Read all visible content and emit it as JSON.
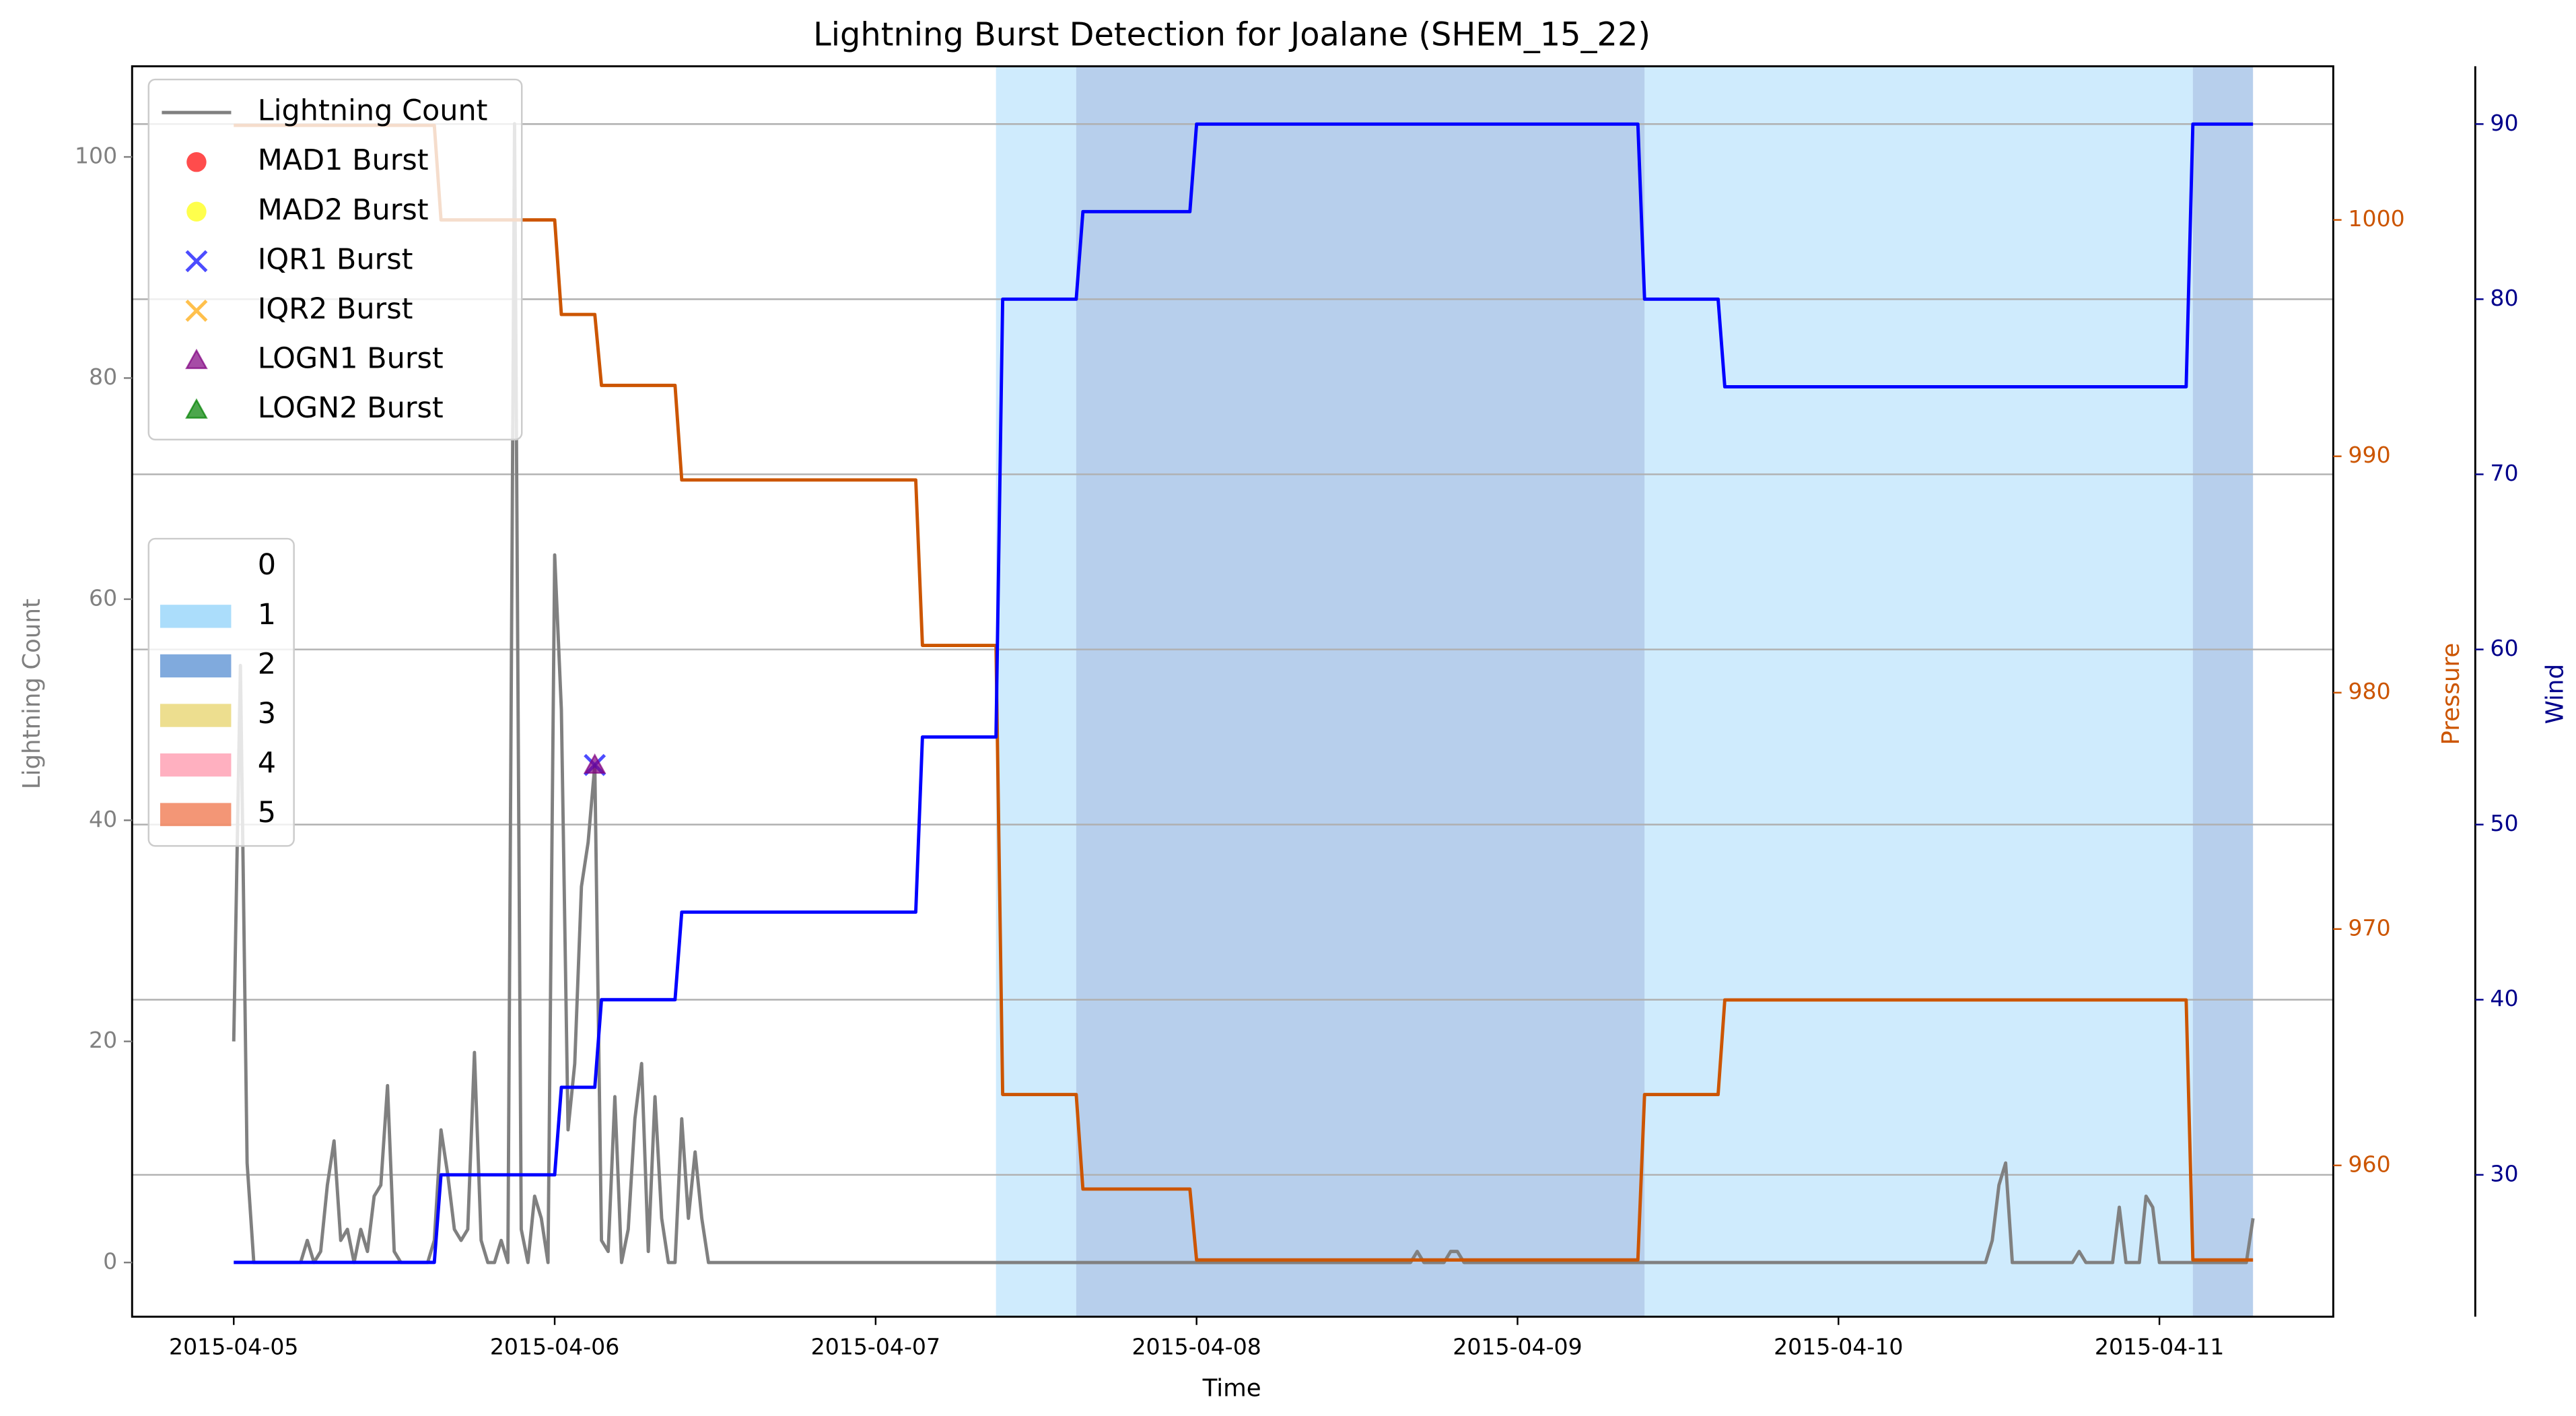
{
  "chart_data": {
    "type": "line",
    "title": "Lightning Burst Detection for Joalane (SHEM_15_22)",
    "x_label": "Time",
    "y_label": "Lightning Count",
    "y2_label": "Pressure",
    "y3_label": "Wind",
    "xlim": [
      "2015-04-04 16:24",
      "2015-04-11 13:00"
    ],
    "xticks": [
      "2015-04-05",
      "2015-04-06",
      "2015-04-07",
      "2015-04-08",
      "2015-04-09",
      "2015-04-10",
      "2015-04-11"
    ],
    "ylim": [
      -4.9,
      108.2
    ],
    "yticks": [
      0,
      20,
      40,
      60,
      80,
      100
    ],
    "y2lim": [
      953.6,
      1006.5
    ],
    "y2ticks": [
      960,
      970,
      980,
      990,
      1000
    ],
    "y3lim": [
      21.9,
      93.3
    ],
    "y3ticks": [
      30,
      40,
      50,
      60,
      70,
      80,
      90
    ],
    "grid": true,
    "legend": "upper left",
    "series": [
      {
        "name": "Lightning Count",
        "color": "#808080",
        "axis": "y",
        "x": [
          "2015-04-05 00:00",
          "2015-04-05 00:30",
          "2015-04-05 01:00",
          "2015-04-05 01:30",
          "2015-04-05 05:00",
          "2015-04-05 05:30",
          "2015-04-05 06:00",
          "2015-04-05 06:30",
          "2015-04-05 07:00",
          "2015-04-05 07:30",
          "2015-04-05 08:00",
          "2015-04-05 08:30",
          "2015-04-05 09:00",
          "2015-04-05 09:30",
          "2015-04-05 10:00",
          "2015-04-05 10:30",
          "2015-04-05 11:00",
          "2015-04-05 11:30",
          "2015-04-05 12:00",
          "2015-04-05 12:30",
          "2015-04-05 14:30",
          "2015-04-05 15:00",
          "2015-04-05 15:30",
          "2015-04-05 16:00",
          "2015-04-05 16:30",
          "2015-04-05 17:00",
          "2015-04-05 17:30",
          "2015-04-05 18:00",
          "2015-04-05 18:30",
          "2015-04-05 19:00",
          "2015-04-05 19:30",
          "2015-04-05 20:00",
          "2015-04-05 20:30",
          "2015-04-05 21:00",
          "2015-04-05 21:30",
          "2015-04-05 22:00",
          "2015-04-05 22:30",
          "2015-04-05 23:00",
          "2015-04-05 23:30",
          "2015-04-06 00:00",
          "2015-04-06 00:30",
          "2015-04-06 01:00",
          "2015-04-06 01:30",
          "2015-04-06 02:00",
          "2015-04-06 02:30",
          "2015-04-06 03:00",
          "2015-04-06 03:30",
          "2015-04-06 04:00",
          "2015-04-06 04:30",
          "2015-04-06 05:00",
          "2015-04-06 05:30",
          "2015-04-06 06:00",
          "2015-04-06 06:30",
          "2015-04-06 07:00",
          "2015-04-06 07:30",
          "2015-04-06 08:00",
          "2015-04-06 08:30",
          "2015-04-06 09:00",
          "2015-04-06 09:30",
          "2015-04-06 10:00",
          "2015-04-06 10:30",
          "2015-04-06 11:00",
          "2015-04-06 11:30",
          "2015-04-08 16:00",
          "2015-04-08 16:30",
          "2015-04-08 17:00",
          "2015-04-08 18:30",
          "2015-04-08 19:00",
          "2015-04-08 19:30",
          "2015-04-08 20:00",
          "2015-04-10 11:00",
          "2015-04-10 11:30",
          "2015-04-10 12:00",
          "2015-04-10 12:30",
          "2015-04-10 13:00",
          "2015-04-10 17:30",
          "2015-04-10 18:00",
          "2015-04-10 18:30",
          "2015-04-10 20:30",
          "2015-04-10 21:00",
          "2015-04-10 21:30",
          "2015-04-10 22:30",
          "2015-04-10 23:00",
          "2015-04-10 23:30",
          "2015-04-11 00:00",
          "2015-04-11 06:30",
          "2015-04-11 07:00"
        ],
        "values": [
          20,
          54,
          9,
          0,
          0,
          2,
          0,
          1,
          7,
          11,
          2,
          3,
          0,
          3,
          1,
          6,
          7,
          16,
          1,
          0,
          0,
          2,
          12,
          8,
          3,
          2,
          3,
          19,
          2,
          0,
          0,
          2,
          0,
          103,
          3,
          0,
          6,
          4,
          0,
          64,
          50,
          12,
          18,
          34,
          38,
          45,
          2,
          1,
          15,
          0,
          3,
          13,
          18,
          1,
          15,
          4,
          0,
          0,
          13,
          4,
          10,
          4,
          0,
          0,
          1,
          0,
          0,
          1,
          1,
          0,
          0,
          2,
          7,
          9,
          0,
          0,
          1,
          0,
          0,
          5,
          0,
          0,
          6,
          5,
          0,
          0,
          4
        ]
      },
      {
        "name": "Pressure",
        "color": "#cc5500",
        "axis": "y2",
        "x": [
          "2015-04-05 00:00",
          "2015-04-05 15:00",
          "2015-04-05 15:30",
          "2015-04-06 00:00",
          "2015-04-06 00:30",
          "2015-04-06 03:00",
          "2015-04-06 03:30",
          "2015-04-06 09:00",
          "2015-04-06 09:30",
          "2015-04-07 03:00",
          "2015-04-07 03:30",
          "2015-04-07 09:00",
          "2015-04-07 09:30",
          "2015-04-07 15:00",
          "2015-04-07 15:30",
          "2015-04-07 23:30",
          "2015-04-08 00:00",
          "2015-04-09 09:00",
          "2015-04-09 09:30",
          "2015-04-09 15:00",
          "2015-04-09 15:30",
          "2015-04-11 02:00",
          "2015-04-11 02:30",
          "2015-04-11 07:00"
        ],
        "values": [
          1004,
          1004,
          1000,
          1000,
          996,
          996,
          993,
          993,
          989,
          989,
          982,
          982,
          963,
          963,
          959,
          959,
          956,
          956,
          963,
          963,
          967,
          967,
          956,
          956
        ]
      },
      {
        "name": "Wind",
        "color": "#0000ff",
        "axis": "y3",
        "x": [
          "2015-04-05 00:00",
          "2015-04-05 15:00",
          "2015-04-05 15:30",
          "2015-04-06 00:00",
          "2015-04-06 00:30",
          "2015-04-06 03:00",
          "2015-04-06 03:30",
          "2015-04-06 09:00",
          "2015-04-06 09:30",
          "2015-04-07 03:00",
          "2015-04-07 03:30",
          "2015-04-07 09:00",
          "2015-04-07 09:30",
          "2015-04-07 15:00",
          "2015-04-07 15:30",
          "2015-04-07 23:30",
          "2015-04-08 00:00",
          "2015-04-09 09:00",
          "2015-04-09 09:30",
          "2015-04-09 15:00",
          "2015-04-09 15:30",
          "2015-04-11 02:00",
          "2015-04-11 02:30",
          "2015-04-11 07:00"
        ],
        "values": [
          25,
          25,
          30,
          30,
          35,
          35,
          40,
          40,
          45,
          45,
          55,
          55,
          80,
          80,
          85,
          85,
          90,
          90,
          80,
          80,
          75,
          75,
          90,
          90
        ]
      }
    ],
    "bursts": [
      {
        "name": "MAD1 Burst",
        "color": "#ff0000",
        "marker": "circle",
        "x": [],
        "values": []
      },
      {
        "name": "MAD2 Burst",
        "color": "#ffff00",
        "marker": "circle",
        "x": [],
        "values": []
      },
      {
        "name": "IQR1 Burst",
        "color": "#0000ff",
        "marker": "x",
        "x": [
          "2015-04-06 03:00"
        ],
        "values": [
          45
        ]
      },
      {
        "name": "IQR2 Burst",
        "color": "#ffa500",
        "marker": "x",
        "x": [],
        "values": []
      },
      {
        "name": "LOGN1 Burst",
        "color": "#800080",
        "marker": "triangle",
        "x": [
          "2015-04-06 03:00"
        ],
        "values": [
          45
        ]
      },
      {
        "name": "LOGN2 Burst",
        "color": "#008000",
        "marker": "triangle",
        "x": [],
        "values": []
      }
    ],
    "levels": [
      {
        "name": "0",
        "color": "none"
      },
      {
        "name": "1",
        "color": "#87cefa"
      },
      {
        "name": "2",
        "color": "#4a86cf"
      },
      {
        "name": "3",
        "color": "#e6d060"
      },
      {
        "name": "4",
        "color": "#ff8fa5"
      },
      {
        "name": "5",
        "color": "#ee6a3c"
      }
    ],
    "spans": [
      {
        "start": "2015-04-07 09:00",
        "end": "2015-04-07 15:00",
        "level": 1
      },
      {
        "start": "2015-04-07 15:00",
        "end": "2015-04-09 09:30",
        "level": 2
      },
      {
        "start": "2015-04-09 09:30",
        "end": "2015-04-11 02:30",
        "level": 1
      },
      {
        "start": "2015-04-11 02:30",
        "end": "2015-04-11 07:00",
        "level": 2
      }
    ]
  }
}
